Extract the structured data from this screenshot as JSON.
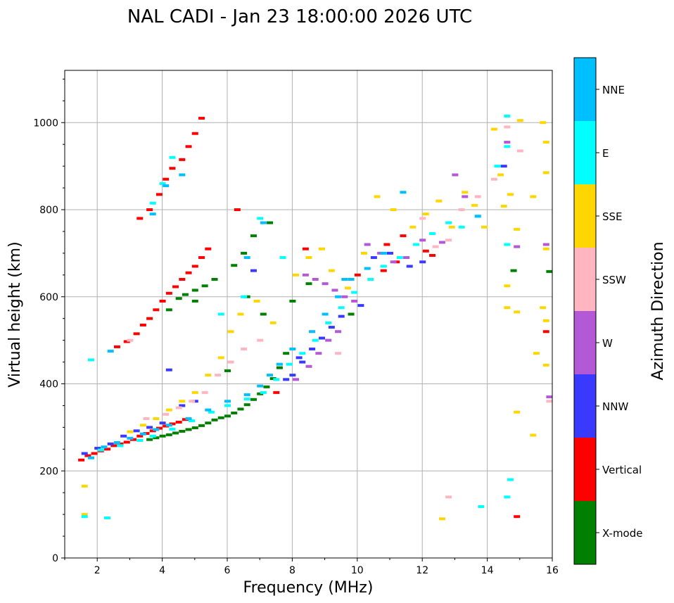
{
  "chart_data": {
    "type": "scatter",
    "title": "NAL CADI - Jan 23 18:00:00 2026 UTC",
    "xlabel": "Frequency (MHz)",
    "ylabel": "Virtual height (km)",
    "xlim": [
      1,
      16
    ],
    "ylim": [
      0,
      1120
    ],
    "xticks": [
      2,
      4,
      6,
      8,
      10,
      12,
      14,
      16
    ],
    "yticks": [
      0,
      200,
      400,
      600,
      800,
      1000
    ],
    "grid": true,
    "colorbar": {
      "label": "Azimuth Direction",
      "categories": [
        "X-mode",
        "Vertical",
        "NNW",
        "W",
        "SSW",
        "SSE",
        "E",
        "NNE"
      ],
      "colors": [
        "#008000",
        "#ff0000",
        "#3a3aff",
        "#b459d6",
        "#ffb6c1",
        "#ffd700",
        "#00ffff",
        "#00bfff"
      ]
    },
    "series": [
      {
        "name": "X-mode",
        "points": [
          [
            3.6,
            272
          ],
          [
            3.8,
            276
          ],
          [
            4.0,
            280
          ],
          [
            4.2,
            283
          ],
          [
            4.4,
            287
          ],
          [
            4.6,
            291
          ],
          [
            4.8,
            295
          ],
          [
            5.0,
            299
          ],
          [
            5.2,
            304
          ],
          [
            5.4,
            310
          ],
          [
            5.6,
            317
          ],
          [
            5.8,
            322
          ],
          [
            6.0,
            326
          ],
          [
            6.2,
            333
          ],
          [
            6.4,
            342
          ],
          [
            6.6,
            352
          ],
          [
            6.8,
            364
          ],
          [
            7.0,
            377
          ],
          [
            7.2,
            393
          ],
          [
            7.4,
            412
          ],
          [
            7.6,
            437
          ],
          [
            7.8,
            470
          ],
          [
            4.5,
            596
          ],
          [
            4.7,
            605
          ],
          [
            5.0,
            615
          ],
          [
            5.3,
            625
          ],
          [
            5.6,
            640
          ],
          [
            6.2,
            672
          ],
          [
            6.5,
            700
          ],
          [
            6.8,
            740
          ],
          [
            7.3,
            770
          ],
          [
            8.0,
            590
          ],
          [
            8.5,
            630
          ],
          [
            9.8,
            560
          ],
          [
            14.8,
            660
          ],
          [
            15.9,
            658
          ],
          [
            4.2,
            570
          ],
          [
            5.0,
            590
          ],
          [
            6.0,
            430
          ],
          [
            6.6,
            600
          ],
          [
            7.1,
            560
          ]
        ]
      },
      {
        "name": "Vertical",
        "points": [
          [
            1.5,
            225
          ],
          [
            1.7,
            235
          ],
          [
            1.9,
            240
          ],
          [
            2.1,
            246
          ],
          [
            2.3,
            250
          ],
          [
            2.5,
            258
          ],
          [
            2.7,
            262
          ],
          [
            2.9,
            266
          ],
          [
            3.1,
            272
          ],
          [
            3.3,
            280
          ],
          [
            3.5,
            286
          ],
          [
            3.7,
            292
          ],
          [
            3.9,
            298
          ],
          [
            4.1,
            303
          ],
          [
            4.3,
            308
          ],
          [
            4.5,
            312
          ],
          [
            4.7,
            318
          ],
          [
            2.6,
            485
          ],
          [
            2.9,
            497
          ],
          [
            3.2,
            515
          ],
          [
            3.4,
            535
          ],
          [
            3.6,
            550
          ],
          [
            3.8,
            570
          ],
          [
            4.0,
            590
          ],
          [
            4.2,
            608
          ],
          [
            4.4,
            623
          ],
          [
            4.6,
            640
          ],
          [
            4.8,
            655
          ],
          [
            5.0,
            670
          ],
          [
            5.2,
            690
          ],
          [
            5.4,
            710
          ],
          [
            3.3,
            780
          ],
          [
            3.6,
            800
          ],
          [
            3.9,
            835
          ],
          [
            4.1,
            870
          ],
          [
            4.3,
            895
          ],
          [
            4.6,
            915
          ],
          [
            4.8,
            945
          ],
          [
            5.0,
            975
          ],
          [
            5.2,
            1010
          ],
          [
            6.3,
            800
          ],
          [
            7.5,
            380
          ],
          [
            8.4,
            710
          ],
          [
            10.0,
            650
          ],
          [
            10.8,
            660
          ],
          [
            11.2,
            680
          ],
          [
            12.1,
            705
          ],
          [
            15.8,
            520
          ],
          [
            14.9,
            95
          ],
          [
            12.3,
            695
          ],
          [
            11.4,
            740
          ],
          [
            10.9,
            720
          ]
        ]
      },
      {
        "name": "NNW",
        "points": [
          [
            1.6,
            240
          ],
          [
            2.0,
            252
          ],
          [
            2.4,
            262
          ],
          [
            2.8,
            280
          ],
          [
            3.2,
            292
          ],
          [
            3.6,
            300
          ],
          [
            4.0,
            310
          ],
          [
            4.2,
            432
          ],
          [
            4.6,
            350
          ],
          [
            5.0,
            360
          ],
          [
            6.8,
            660
          ],
          [
            7.8,
            410
          ],
          [
            8.0,
            420
          ],
          [
            8.3,
            450
          ],
          [
            8.6,
            480
          ],
          [
            8.9,
            505
          ],
          [
            9.2,
            530
          ],
          [
            9.5,
            555
          ],
          [
            10.1,
            580
          ],
          [
            10.5,
            690
          ],
          [
            11.0,
            700
          ],
          [
            11.6,
            670
          ],
          [
            12.0,
            680
          ],
          [
            14.5,
            900
          ],
          [
            8.2,
            460
          ]
        ]
      },
      {
        "name": "W",
        "points": [
          [
            8.4,
            650
          ],
          [
            8.7,
            640
          ],
          [
            9.0,
            630
          ],
          [
            9.3,
            615
          ],
          [
            9.6,
            600
          ],
          [
            9.9,
            590
          ],
          [
            8.1,
            410
          ],
          [
            8.5,
            440
          ],
          [
            8.8,
            470
          ],
          [
            9.1,
            500
          ],
          [
            9.4,
            520
          ],
          [
            10.3,
            720
          ],
          [
            10.7,
            700
          ],
          [
            11.1,
            680
          ],
          [
            11.5,
            690
          ],
          [
            12.6,
            725
          ],
          [
            13.0,
            880
          ],
          [
            13.3,
            830
          ],
          [
            14.6,
            955
          ],
          [
            14.9,
            715
          ],
          [
            15.8,
            720
          ],
          [
            15.9,
            370
          ],
          [
            12.0,
            730
          ]
        ]
      },
      {
        "name": "SSW",
        "points": [
          [
            3.0,
            500
          ],
          [
            3.5,
            320
          ],
          [
            4.1,
            330
          ],
          [
            4.5,
            345
          ],
          [
            4.9,
            360
          ],
          [
            5.3,
            380
          ],
          [
            5.7,
            420
          ],
          [
            6.1,
            450
          ],
          [
            6.5,
            480
          ],
          [
            7.0,
            500
          ],
          [
            12.0,
            780
          ],
          [
            12.4,
            715
          ],
          [
            12.8,
            730
          ],
          [
            13.2,
            800
          ],
          [
            13.7,
            830
          ],
          [
            14.2,
            870
          ],
          [
            14.6,
            990
          ],
          [
            15.0,
            935
          ],
          [
            12.8,
            140
          ],
          [
            15.9,
            360
          ],
          [
            8.6,
            520
          ],
          [
            9.4,
            470
          ]
        ]
      },
      {
        "name": "SSE",
        "points": [
          [
            1.6,
            165
          ],
          [
            1.6,
            100
          ],
          [
            3.0,
            290
          ],
          [
            3.4,
            305
          ],
          [
            3.8,
            320
          ],
          [
            4.2,
            340
          ],
          [
            4.6,
            360
          ],
          [
            5.0,
            380
          ],
          [
            5.4,
            420
          ],
          [
            5.8,
            460
          ],
          [
            6.1,
            520
          ],
          [
            6.4,
            560
          ],
          [
            6.9,
            590
          ],
          [
            7.4,
            540
          ],
          [
            8.1,
            650
          ],
          [
            8.5,
            690
          ],
          [
            8.9,
            710
          ],
          [
            9.2,
            660
          ],
          [
            9.7,
            620
          ],
          [
            10.2,
            700
          ],
          [
            10.6,
            830
          ],
          [
            11.1,
            800
          ],
          [
            11.7,
            760
          ],
          [
            12.1,
            790
          ],
          [
            12.5,
            820
          ],
          [
            12.9,
            760
          ],
          [
            13.3,
            840
          ],
          [
            13.6,
            810
          ],
          [
            13.9,
            760
          ],
          [
            14.2,
            985
          ],
          [
            14.4,
            880
          ],
          [
            14.7,
            835
          ],
          [
            14.9,
            755
          ],
          [
            15.0,
            1005
          ],
          [
            15.4,
            830
          ],
          [
            15.7,
            1000
          ],
          [
            15.8,
            885
          ],
          [
            15.8,
            710
          ],
          [
            15.7,
            575
          ],
          [
            15.8,
            545
          ],
          [
            15.5,
            470
          ],
          [
            15.8,
            443
          ],
          [
            14.9,
            335
          ],
          [
            15.4,
            282
          ],
          [
            12.6,
            90
          ],
          [
            14.6,
            625
          ],
          [
            14.6,
            575
          ],
          [
            14.9,
            565
          ],
          [
            15.8,
            955
          ],
          [
            14.5,
            808
          ]
        ]
      },
      {
        "name": "E",
        "points": [
          [
            1.6,
            95
          ],
          [
            2.3,
            92
          ],
          [
            2.1,
            248
          ],
          [
            2.7,
            258
          ],
          [
            3.3,
            270
          ],
          [
            3.7,
            280
          ],
          [
            4.3,
            296
          ],
          [
            4.9,
            315
          ],
          [
            5.5,
            335
          ],
          [
            6.0,
            350
          ],
          [
            6.6,
            365
          ],
          [
            7.1,
            380
          ],
          [
            7.5,
            410
          ],
          [
            7.9,
            445
          ],
          [
            8.3,
            470
          ],
          [
            8.7,
            500
          ],
          [
            9.1,
            540
          ],
          [
            9.5,
            575
          ],
          [
            9.9,
            610
          ],
          [
            10.4,
            640
          ],
          [
            10.8,
            670
          ],
          [
            11.3,
            690
          ],
          [
            11.8,
            720
          ],
          [
            12.3,
            745
          ],
          [
            12.8,
            770
          ],
          [
            13.2,
            760
          ],
          [
            13.7,
            785
          ],
          [
            14.3,
            900
          ],
          [
            14.6,
            945
          ],
          [
            14.6,
            720
          ],
          [
            14.6,
            1015
          ],
          [
            14.7,
            180
          ],
          [
            14.6,
            140
          ],
          [
            13.8,
            118
          ],
          [
            4.3,
            920
          ],
          [
            4.0,
            860
          ],
          [
            3.7,
            815
          ],
          [
            1.8,
            455
          ],
          [
            6.5,
            600
          ],
          [
            7.0,
            780
          ],
          [
            7.7,
            690
          ],
          [
            5.8,
            560
          ]
        ]
      },
      {
        "name": "NNE",
        "points": [
          [
            1.8,
            230
          ],
          [
            2.2,
            255
          ],
          [
            2.6,
            265
          ],
          [
            3.0,
            275
          ],
          [
            3.4,
            285
          ],
          [
            3.8,
            295
          ],
          [
            4.2,
            305
          ],
          [
            4.8,
            320
          ],
          [
            5.4,
            340
          ],
          [
            6.0,
            360
          ],
          [
            6.6,
            375
          ],
          [
            7.0,
            395
          ],
          [
            7.3,
            420
          ],
          [
            7.6,
            445
          ],
          [
            8.0,
            480
          ],
          [
            8.6,
            520
          ],
          [
            9.0,
            560
          ],
          [
            9.4,
            600
          ],
          [
            9.8,
            640
          ],
          [
            10.3,
            665
          ],
          [
            10.8,
            700
          ],
          [
            11.4,
            840
          ],
          [
            13.7,
            785
          ],
          [
            4.1,
            855
          ],
          [
            4.6,
            880
          ],
          [
            3.7,
            790
          ],
          [
            2.4,
            475
          ],
          [
            6.6,
            690
          ],
          [
            7.1,
            770
          ],
          [
            9.6,
            640
          ]
        ]
      }
    ]
  }
}
